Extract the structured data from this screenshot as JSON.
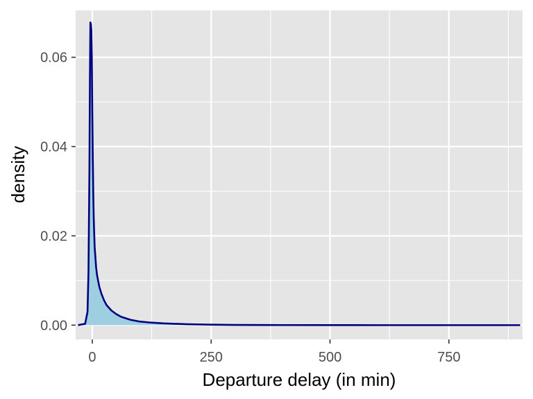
{
  "chart_data": {
    "type": "area",
    "title": "",
    "xlabel": "Departure delay (in min)",
    "ylabel": "density",
    "xlim": [
      -35,
      905
    ],
    "ylim": [
      -0.0032,
      0.0705
    ],
    "x_ticks": [
      0,
      250,
      500,
      750
    ],
    "x_tick_labels": [
      "0",
      "250",
      "500",
      "750"
    ],
    "x_minor_ticks": [
      125,
      375,
      625,
      875
    ],
    "y_ticks": [
      0.0,
      0.02,
      0.04,
      0.06
    ],
    "y_tick_labels": [
      "0.00",
      "0.02",
      "0.04",
      "0.06"
    ],
    "y_minor_ticks": [
      0.01,
      0.03,
      0.05
    ],
    "grid": true,
    "legend": "none",
    "colors": {
      "panel_background": "#e5e5e5",
      "grid": "#ffffff",
      "fill": "#9ecfe0",
      "line": "#00007f"
    },
    "series": [
      {
        "x": [
          -30,
          -15,
          -10,
          -8,
          -6,
          -5,
          -4,
          -3,
          -2,
          -1,
          0,
          1,
          2,
          3,
          5,
          8,
          10,
          15,
          20,
          25,
          30,
          40,
          50,
          60,
          80,
          100,
          120,
          150,
          200,
          250,
          300,
          400,
          500,
          600,
          700,
          800,
          900
        ],
        "y": [
          0.0,
          0.0003,
          0.003,
          0.012,
          0.035,
          0.055,
          0.0678,
          0.0675,
          0.066,
          0.06,
          0.048,
          0.038,
          0.03,
          0.024,
          0.0175,
          0.013,
          0.0112,
          0.0085,
          0.0068,
          0.0055,
          0.0045,
          0.0033,
          0.0025,
          0.0019,
          0.0012,
          0.0008,
          0.0006,
          0.0004,
          0.0002,
          0.0001,
          5e-05,
          2e-05,
          1e-05,
          0.0,
          0.0,
          0.0,
          0.0
        ]
      }
    ]
  }
}
